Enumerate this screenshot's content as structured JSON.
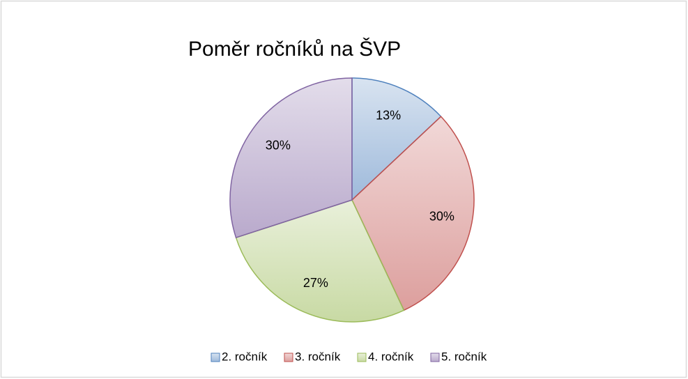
{
  "chart_data": {
    "type": "pie",
    "title": "Poměr ročníků na ŠVP",
    "categories": [
      "2. ročník",
      "3. ročník",
      "4. ročník",
      "5. ročník"
    ],
    "values": [
      13,
      30,
      27,
      30
    ],
    "value_labels": [
      "13%",
      "30%",
      "27%",
      "30%"
    ],
    "colors": [
      "#4f81bd",
      "#c0504d",
      "#9bbb59",
      "#8064a2"
    ],
    "legend": "bottom"
  }
}
